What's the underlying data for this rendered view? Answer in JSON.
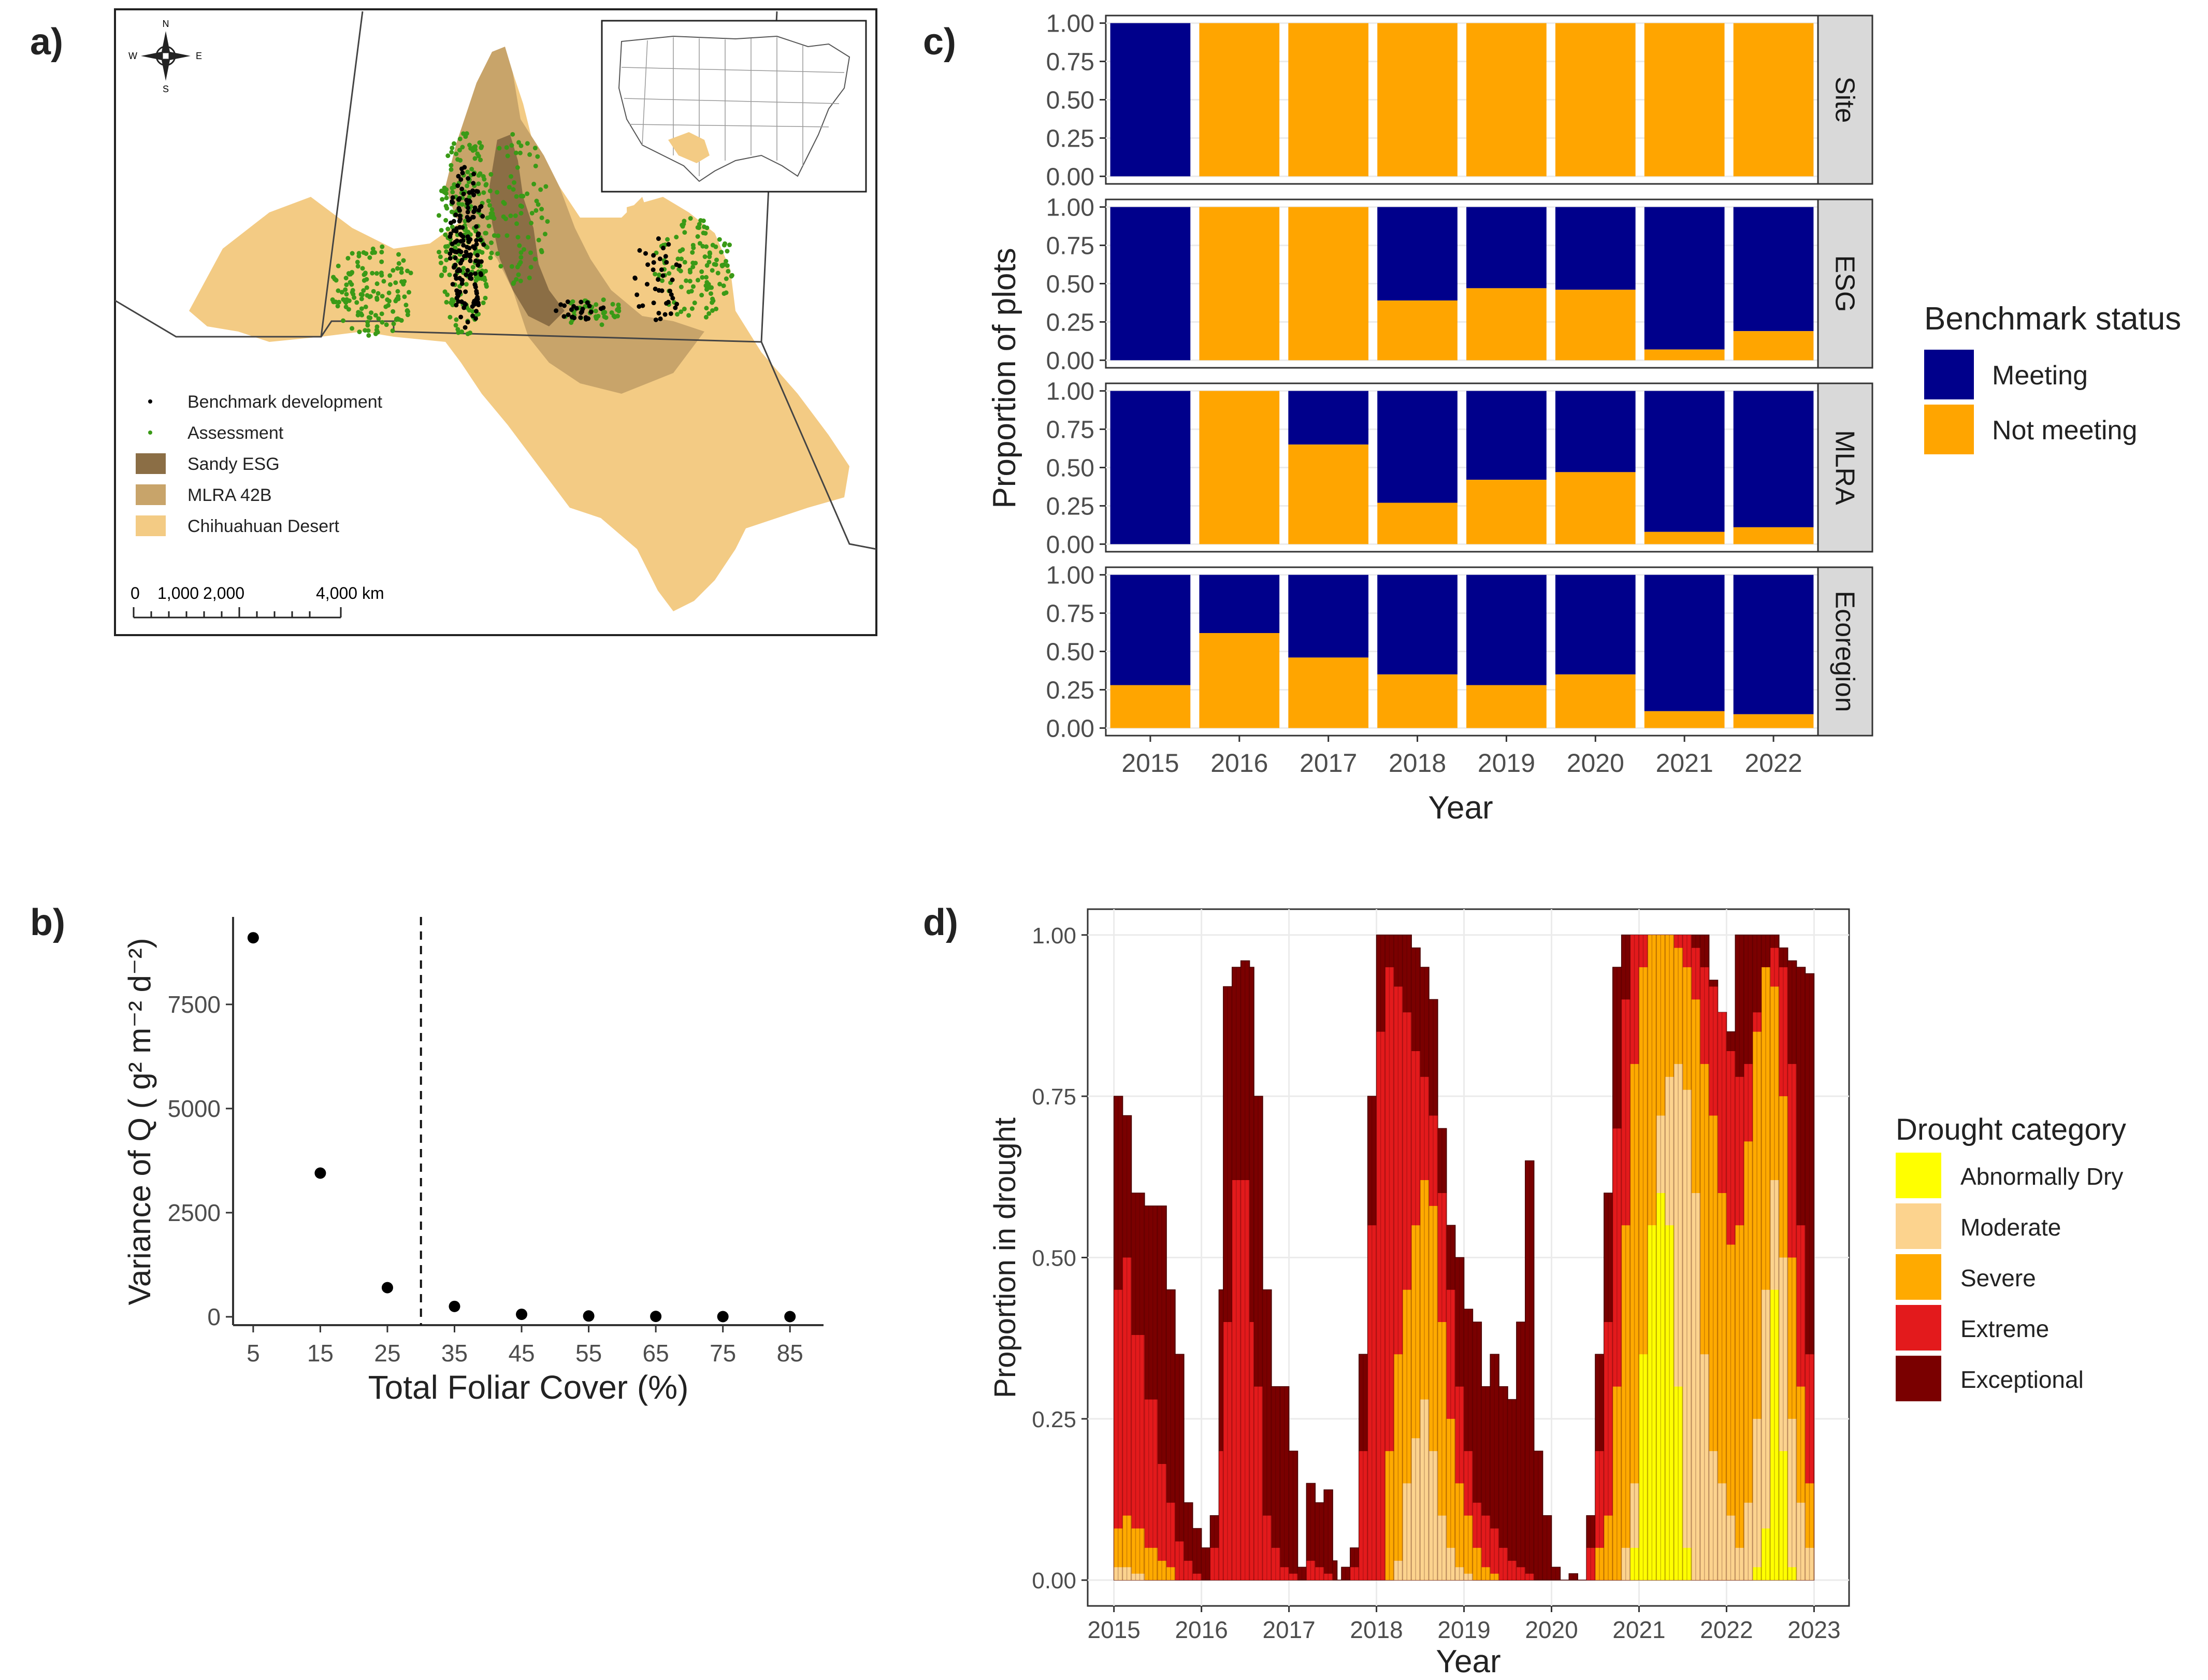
{
  "panels": {
    "a": "a)",
    "b": "b)",
    "c": "c)",
    "d": "d)"
  },
  "map": {
    "compass": {
      "n": "N",
      "s": "S",
      "e": "E",
      "w": "W"
    },
    "legend": [
      {
        "label": "Benchmark development",
        "color": "#000000",
        "kind": "dot"
      },
      {
        "label": "Assessment",
        "color": "#3a9a17",
        "kind": "dot"
      },
      {
        "label": "Sandy ESG",
        "color": "#8b6e45",
        "kind": "box"
      },
      {
        "label": "MLRA 42B",
        "color": "#c8a46a",
        "kind": "box"
      },
      {
        "label": "Chihuahuan Desert",
        "color": "#f3cb84",
        "kind": "box"
      }
    ],
    "scalebar": [
      "0",
      "1,000",
      "2,000",
      "4,000 km"
    ]
  },
  "colors": {
    "meeting": "#00008b",
    "not_meeting": "#ffa500",
    "strip_bg": "#d9d9d9",
    "grid": "#ebebeb",
    "drought": [
      "#ffff00",
      "#fcd38e",
      "#ffaa00",
      "#e31a1c",
      "#7a0000"
    ]
  },
  "chart_data": [
    {
      "type": "scatter",
      "panel": "b",
      "xlabel": "Total Foliar Cover (%)",
      "ylabel": "Variance of Q ( g² m⁻² d⁻²)",
      "x": [
        5,
        15,
        25,
        35,
        45,
        55,
        65,
        75,
        85
      ],
      "y": [
        9100,
        3450,
        700,
        250,
        60,
        20,
        10,
        5,
        5
      ],
      "xticks": [
        "5",
        "15",
        "25",
        "35",
        "45",
        "55",
        "65",
        "75",
        "85"
      ],
      "yticks": [
        "0",
        "2500",
        "5000",
        "7500"
      ],
      "ylim": [
        -200,
        9600
      ],
      "xlim": [
        2,
        90
      ],
      "vline": 30,
      "grid": false
    },
    {
      "type": "bar",
      "stacked": true,
      "panel": "c",
      "xlabel": "Year",
      "ylabel": "Proportion of plots",
      "categories": [
        "2015",
        "2016",
        "2017",
        "2018",
        "2019",
        "2020",
        "2021",
        "2022"
      ],
      "yticks": [
        "0.00",
        "0.25",
        "0.50",
        "0.75",
        "1.00"
      ],
      "legend_title": "Benchmark status",
      "legend_placement": "right",
      "series_names": [
        "Meeting",
        "Not meeting"
      ],
      "facets": [
        {
          "label": "Site",
          "not_meeting": [
            0,
            1,
            1,
            1,
            1,
            1,
            1,
            1
          ]
        },
        {
          "label": "ESG",
          "not_meeting": [
            0,
            1,
            1,
            0.39,
            0.47,
            0.46,
            0.07,
            0.19
          ]
        },
        {
          "label": "MLRA",
          "not_meeting": [
            0,
            1,
            0.65,
            0.27,
            0.42,
            0.47,
            0.08,
            0.11
          ]
        },
        {
          "label": "Ecoregion",
          "not_meeting": [
            0.28,
            0.62,
            0.46,
            0.35,
            0.28,
            0.35,
            0.11,
            0.09
          ]
        }
      ]
    },
    {
      "type": "area",
      "stacked": true,
      "panel": "d",
      "xlabel": "Year",
      "ylabel": "Proportion in drought",
      "xticks": [
        "2015",
        "2016",
        "2017",
        "2018",
        "2019",
        "2020",
        "2021",
        "2022",
        "2023"
      ],
      "yticks": [
        "0.00",
        "0.25",
        "0.50",
        "0.75",
        "1.00"
      ],
      "xlim": [
        2014.7,
        2023.4
      ],
      "ylim": [
        -0.04,
        1.04
      ],
      "legend_title": "Drought category",
      "legend_placement": "right",
      "categories": [
        "Abnormally Dry",
        "Moderate",
        "Severe",
        "Extreme",
        "Exceptional"
      ],
      "x": [
        2015.0,
        2015.1,
        2015.2,
        2015.35,
        2015.5,
        2015.6,
        2015.7,
        2015.8,
        2015.9,
        2016.0,
        2016.1,
        2016.2,
        2016.25,
        2016.35,
        2016.45,
        2016.55,
        2016.6,
        2016.7,
        2016.8,
        2016.9,
        2017.0,
        2017.1,
        2017.2,
        2017.3,
        2017.4,
        2017.5,
        2017.55,
        2017.6,
        2017.7,
        2017.8,
        2017.9,
        2018.0,
        2018.1,
        2018.2,
        2018.3,
        2018.4,
        2018.5,
        2018.6,
        2018.7,
        2018.8,
        2018.9,
        2019.0,
        2019.1,
        2019.2,
        2019.3,
        2019.4,
        2019.5,
        2019.6,
        2019.7,
        2019.8,
        2019.9,
        2020.0,
        2020.1,
        2020.2,
        2020.3,
        2020.4,
        2020.5,
        2020.6,
        2020.7,
        2020.8,
        2020.9,
        2021.0,
        2021.1,
        2021.2,
        2021.3,
        2021.4,
        2021.5,
        2021.6,
        2021.7,
        2021.8,
        2021.9,
        2022.0,
        2022.1,
        2022.2,
        2022.3,
        2022.4,
        2022.5,
        2022.6,
        2022.7,
        2022.8,
        2022.9,
        2023.0
      ],
      "cumulative_levels": {
        "Abnormally Dry": [
          0,
          0,
          0,
          0,
          0,
          0,
          0,
          0,
          0,
          0,
          0,
          0,
          0,
          0,
          0,
          0,
          0,
          0,
          0,
          0,
          0,
          0,
          0,
          0,
          0,
          0,
          0,
          0,
          0,
          0,
          0,
          0,
          0,
          0,
          0,
          0,
          0,
          0,
          0,
          0,
          0,
          0,
          0,
          0,
          0,
          0,
          0,
          0,
          0,
          0,
          0,
          0,
          0,
          0,
          0,
          0,
          0,
          0,
          0,
          0,
          0.05,
          0.35,
          0.55,
          0.6,
          0.55,
          0.3,
          0.05,
          0,
          0,
          0,
          0,
          0,
          0,
          0,
          0.02,
          0.08,
          0.45,
          0.2,
          0.02,
          0,
          0,
          0
        ],
        "Moderate": [
          0.02,
          0.02,
          0.01,
          0,
          0,
          0,
          0,
          0,
          0,
          0,
          0,
          0,
          0,
          0,
          0,
          0,
          0,
          0,
          0,
          0,
          0,
          0,
          0,
          0,
          0,
          0,
          0,
          0,
          0,
          0,
          0,
          0,
          0,
          0.03,
          0.15,
          0.22,
          0.28,
          0.2,
          0.1,
          0.05,
          0.02,
          0.01,
          0,
          0,
          0,
          0,
          0,
          0,
          0,
          0,
          0,
          0,
          0,
          0,
          0,
          0,
          0,
          0,
          0,
          0.05,
          0.15,
          0.3,
          0.55,
          0.72,
          0.78,
          0.8,
          0.76,
          0.6,
          0.35,
          0.2,
          0.15,
          0.1,
          0.05,
          0.12,
          0.25,
          0.45,
          0.62,
          0.5,
          0.25,
          0.12,
          0.05,
          0.03
        ],
        "Severe": [
          0.08,
          0.1,
          0.08,
          0.05,
          0.03,
          0.02,
          0,
          0,
          0,
          0,
          0,
          0,
          0,
          0,
          0,
          0,
          0,
          0,
          0,
          0,
          0,
          0,
          0,
          0,
          0,
          0,
          0,
          0,
          0,
          0,
          0,
          0,
          0.2,
          0.35,
          0.45,
          0.55,
          0.62,
          0.58,
          0.4,
          0.25,
          0.15,
          0.1,
          0.05,
          0.02,
          0.01,
          0,
          0,
          0,
          0,
          0,
          0,
          0,
          0,
          0,
          0,
          0,
          0.05,
          0.1,
          0.3,
          0.55,
          0.8,
          0.95,
          1.0,
          1.0,
          1.0,
          0.98,
          0.95,
          0.9,
          0.8,
          0.72,
          0.6,
          0.52,
          0.55,
          0.68,
          0.85,
          0.95,
          0.92,
          0.75,
          0.5,
          0.3,
          0.15,
          0.1
        ],
        "Extreme": [
          0.45,
          0.5,
          0.38,
          0.28,
          0.18,
          0.12,
          0.06,
          0.03,
          0.01,
          0,
          0.05,
          0.2,
          0.4,
          0.62,
          0.62,
          0.4,
          0.3,
          0.1,
          0.05,
          0.02,
          0.01,
          0,
          0.03,
          0.02,
          0.01,
          0,
          0,
          0,
          0.02,
          0.2,
          0.55,
          0.85,
          0.95,
          0.92,
          0.88,
          0.82,
          0.78,
          0.72,
          0.6,
          0.45,
          0.3,
          0.2,
          0.12,
          0.1,
          0.08,
          0.05,
          0.03,
          0.02,
          0.01,
          0,
          0,
          0,
          0,
          0,
          0,
          0.05,
          0.2,
          0.4,
          0.7,
          0.9,
          1.0,
          1.0,
          1.0,
          1.0,
          1.0,
          1.0,
          1.0,
          0.98,
          0.95,
          0.92,
          0.88,
          0.82,
          0.78,
          0.8,
          0.88,
          0.95,
          0.98,
          0.95,
          0.8,
          0.55,
          0.35,
          0.22
        ],
        "Exceptional": [
          0.75,
          0.72,
          0.6,
          0.58,
          0.58,
          0.45,
          0.35,
          0.12,
          0.08,
          0.05,
          0.1,
          0.45,
          0.92,
          0.95,
          0.96,
          0.95,
          0.75,
          0.45,
          0.3,
          0.3,
          0.2,
          0.02,
          0.15,
          0.12,
          0.14,
          0.03,
          0.0,
          0.02,
          0.05,
          0.35,
          0.75,
          1.0,
          1.0,
          1.0,
          1.0,
          0.98,
          0.95,
          0.9,
          0.7,
          0.55,
          0.5,
          0.42,
          0.4,
          0.3,
          0.35,
          0.3,
          0.28,
          0.4,
          0.65,
          0.2,
          0.1,
          0.02,
          0,
          0.01,
          0,
          0.1,
          0.35,
          0.6,
          0.95,
          1.0,
          1.0,
          1.0,
          1.0,
          1.0,
          1.0,
          1.0,
          1.0,
          1.0,
          1.0,
          0.93,
          0.88,
          0.85,
          1.0,
          1.0,
          1.0,
          1.0,
          1.0,
          0.98,
          0.96,
          0.95,
          0.94,
          0.93
        ]
      }
    }
  ]
}
